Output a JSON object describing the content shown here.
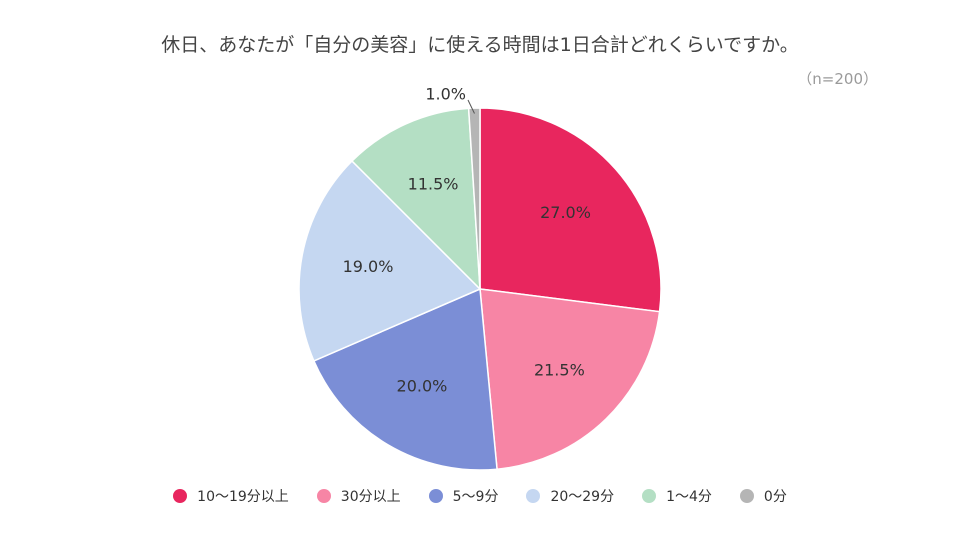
{
  "chart_data": {
    "type": "pie",
    "title": "休日、あなたが「自分の美容」に使える時間は1日合計どれくらいですか。",
    "subtitle": "（n=200）",
    "legend_position": "bottom",
    "slices": [
      {
        "name": "10〜19分以上",
        "value": 27.0,
        "label": "27.0%",
        "color": "#E8265E"
      },
      {
        "name": "30分以上",
        "value": 21.5,
        "label": "21.5%",
        "color": "#F785A5"
      },
      {
        "name": "5〜9分",
        "value": 20.0,
        "label": "20.0%",
        "color": "#7B8ED6"
      },
      {
        "name": "20〜29分",
        "value": 19.0,
        "label": "19.0%",
        "color": "#C5D7F1"
      },
      {
        "name": "1〜4分",
        "value": 11.5,
        "label": "11.5%",
        "color": "#B4DFC4"
      },
      {
        "name": "0分",
        "value": 1.0,
        "label": "1.0%",
        "color": "#B5B5B5"
      }
    ]
  }
}
